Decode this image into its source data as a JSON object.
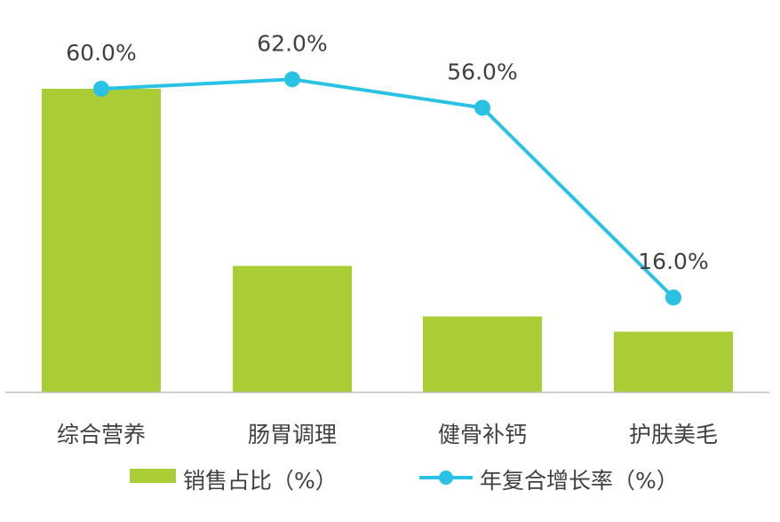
{
  "chart_data": {
    "type": "bar",
    "categories": [
      "综合营养",
      "肠胃调理",
      "健骨补钙",
      "护肤美毛"
    ],
    "series": [
      {
        "name": "销售占比（%）",
        "type": "bar",
        "values": [
          60.0,
          25.0,
          15.0,
          12.0
        ],
        "color": "#aacd35"
      },
      {
        "name": "年复合增长率（%）",
        "type": "line",
        "values": [
          60.0,
          62.0,
          56.0,
          16.0
        ],
        "color": "#29c2e5"
      }
    ],
    "data_labels": [
      "60.0%",
      "62.0%",
      "56.0%",
      "16.0%"
    ],
    "grid": false,
    "legend_position": "bottom"
  }
}
